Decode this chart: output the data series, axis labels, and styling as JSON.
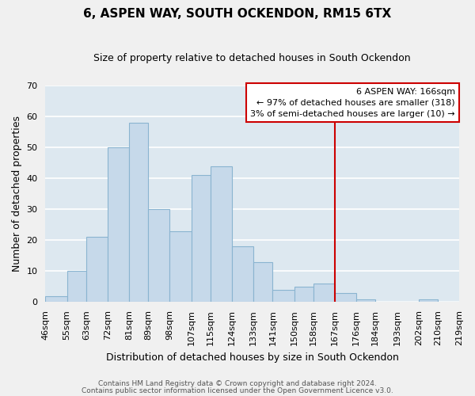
{
  "title": "6, ASPEN WAY, SOUTH OCKENDON, RM15 6TX",
  "subtitle": "Size of property relative to detached houses in South Ockendon",
  "xlabel": "Distribution of detached houses by size in South Ockendon",
  "ylabel": "Number of detached properties",
  "bin_labels": [
    "46sqm",
    "55sqm",
    "63sqm",
    "72sqm",
    "81sqm",
    "89sqm",
    "98sqm",
    "107sqm",
    "115sqm",
    "124sqm",
    "133sqm",
    "141sqm",
    "150sqm",
    "158sqm",
    "167sqm",
    "176sqm",
    "184sqm",
    "193sqm",
    "202sqm",
    "210sqm",
    "219sqm"
  ],
  "bin_edges": [
    46,
    55,
    63,
    72,
    81,
    89,
    98,
    107,
    115,
    124,
    133,
    141,
    150,
    158,
    167,
    176,
    184,
    193,
    202,
    210,
    219
  ],
  "counts": [
    2,
    10,
    21,
    50,
    58,
    30,
    23,
    41,
    44,
    18,
    13,
    4,
    5,
    6,
    3,
    1,
    0,
    0,
    1,
    0
  ],
  "bar_color": "#c6d9ea",
  "bar_edge_color": "#8ab4d0",
  "vline_x": 167,
  "vline_color": "#cc0000",
  "ylim": [
    0,
    70
  ],
  "yticks": [
    0,
    10,
    20,
    30,
    40,
    50,
    60,
    70
  ],
  "grid_color": "#ffffff",
  "plot_bg_color": "#dde8f0",
  "fig_bg_color": "#f0f0f0",
  "legend_title": "6 ASPEN WAY: 166sqm",
  "legend_line1": "← 97% of detached houses are smaller (318)",
  "legend_line2": "3% of semi-detached houses are larger (10) →",
  "footer1": "Contains HM Land Registry data © Crown copyright and database right 2024.",
  "footer2": "Contains public sector information licensed under the Open Government Licence v3.0.",
  "title_fontsize": 11,
  "subtitle_fontsize": 9,
  "xlabel_fontsize": 9,
  "ylabel_fontsize": 9,
  "tick_fontsize": 8,
  "footer_fontsize": 6.5,
  "legend_fontsize": 8
}
